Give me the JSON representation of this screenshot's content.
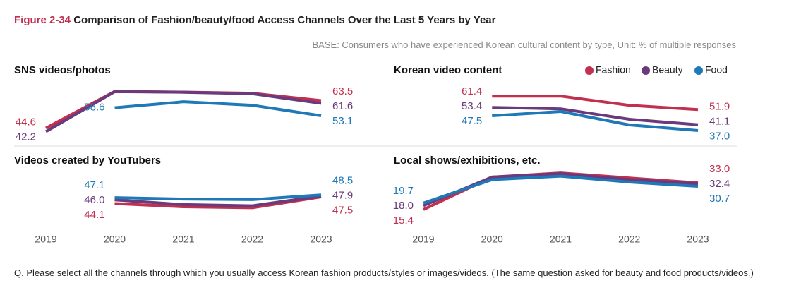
{
  "header": {
    "figure_label": "Figure 2-34",
    "title": "Comparison of Fashion/beauty/food Access Channels Over the Last 5 Years by Year",
    "subtitle": "BASE: Consumers who have experienced Korean cultural content by type, Unit: % of multiple responses"
  },
  "footnote": "Q. Please select all the channels through which you usually access Korean fashion products/styles or images/videos. (The same question asked for beauty and food products/videos.)",
  "chart_data": [
    {
      "type": "line",
      "title": "SNS videos/photos",
      "x": [
        2019,
        2020,
        2021,
        2022,
        2023
      ],
      "xlim": [
        2019,
        2023
      ],
      "ylim": [
        41,
        71
      ],
      "series": [
        {
          "color": "#c1304f",
          "values": [
            44.6,
            69.8,
            69.3,
            68.5,
            63.5
          ]
        },
        {
          "color": "#6a3a7c",
          "values": [
            42.2,
            69.6,
            69.2,
            68.2,
            61.6
          ]
        },
        {
          "color": "#1e79b6",
          "values": [
            null,
            58.6,
            62.7,
            60.3,
            53.1
          ]
        }
      ]
    },
    {
      "type": "line",
      "title": "Korean video content",
      "x": [
        2019,
        2020,
        2021,
        2022,
        2023
      ],
      "xlim": [
        2019,
        2023
      ],
      "ylim": [
        35,
        66
      ],
      "series": [
        {
          "name": "Fashion",
          "color": "#c1304f",
          "values": [
            null,
            61.4,
            61.4,
            54.9,
            51.9
          ]
        },
        {
          "name": "Beauty",
          "color": "#6a3a7c",
          "values": [
            null,
            53.4,
            52.4,
            45.0,
            41.1
          ]
        },
        {
          "name": "Food",
          "color": "#1e79b6",
          "values": [
            null,
            47.5,
            50.5,
            41.0,
            37.0
          ],
          "value_labels": [
            null,
            null,
            null,
            null,
            "37.0"
          ]
        }
      ]
    },
    {
      "type": "line",
      "title": "Videos created by YouTubers",
      "x": [
        2019,
        2020,
        2021,
        2022,
        2023
      ],
      "xlim": [
        2019,
        2023
      ],
      "ylim": [
        40,
        60
      ],
      "series": [
        {
          "color": "#c1304f",
          "values": [
            null,
            44.1,
            42.5,
            42.0,
            47.5
          ]
        },
        {
          "color": "#6a3a7c",
          "values": [
            null,
            46.0,
            43.6,
            43.0,
            47.9
          ],
          "value_labels": [
            null,
            "46.0",
            null,
            null,
            null
          ]
        },
        {
          "color": "#1e79b6",
          "values": [
            null,
            47.1,
            46.4,
            46.1,
            48.5
          ]
        }
      ]
    },
    {
      "type": "line",
      "title": "Local shows/exhibitions, etc.",
      "x": [
        2019,
        2020,
        2021,
        2022,
        2023
      ],
      "xlim": [
        2019,
        2023
      ],
      "ylim": [
        14,
        40
      ],
      "series": [
        {
          "color": "#c1304f",
          "values": [
            15.4,
            36.8,
            39.5,
            36.2,
            33.0
          ],
          "value_labels": [
            null,
            null,
            null,
            null,
            "33.0"
          ]
        },
        {
          "color": "#6a3a7c",
          "values": [
            18.0,
            36.8,
            39.0,
            35.1,
            32.4
          ],
          "value_labels": [
            "18.0",
            null,
            null,
            null,
            null
          ]
        },
        {
          "color": "#1e79b6",
          "values": [
            19.7,
            35.1,
            37.4,
            33.5,
            30.7
          ]
        }
      ]
    }
  ]
}
